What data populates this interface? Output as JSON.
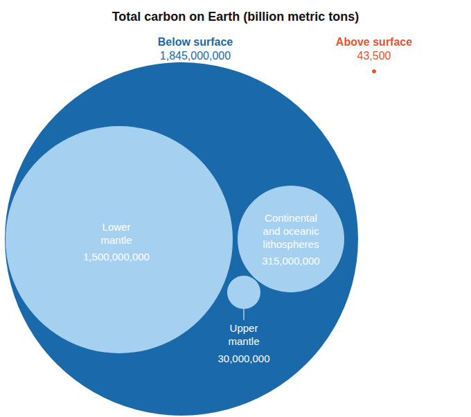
{
  "chart_data": {
    "type": "nested_bubble",
    "title": "Total carbon on Earth (billion metric tons)",
    "groups": [
      {
        "name": "Below surface",
        "value": 1845000000,
        "value_label": "1,845,000,000",
        "color": "#1a69aa",
        "children": [
          {
            "name": "Lower\nmantle",
            "value": 1500000000,
            "value_label": "1,500,000,000",
            "color": "#a5d0f0"
          },
          {
            "name": "Continental\nand oceanic\nlithospheres",
            "value": 315000000,
            "value_label": "315,000,000",
            "color": "#a5d0f0"
          },
          {
            "name": "Upper\nmantle",
            "value": 30000000,
            "value_label": "30,000,000",
            "color": "#a5d0f0"
          }
        ]
      },
      {
        "name": "Above surface",
        "value": 43500,
        "value_label": "43,500",
        "color": "#e4542a"
      }
    ]
  }
}
